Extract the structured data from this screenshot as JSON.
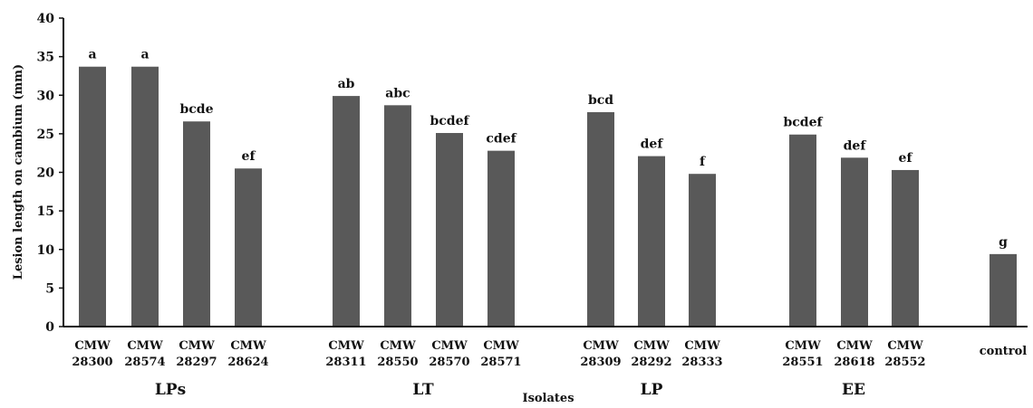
{
  "chart_data": {
    "type": "bar",
    "title": "",
    "xlabel": "Isolates",
    "ylabel": "Lesion length on cambium (mm)",
    "ylim": [
      0,
      40
    ],
    "yticks": [
      "0",
      "5",
      "10",
      "15",
      "20",
      "25",
      "30",
      "35",
      "40"
    ],
    "grid": false,
    "legend": "none",
    "bar_color": "#595959",
    "categories": [
      {
        "line1": "CMW",
        "line2": "28300",
        "group": "LPs",
        "value": 33.7,
        "sig": "a"
      },
      {
        "line1": "CMW",
        "line2": "28574",
        "group": "LPs",
        "value": 33.7,
        "sig": "a"
      },
      {
        "line1": "CMW",
        "line2": "28297",
        "group": "LPs",
        "value": 26.6,
        "sig": "bcde"
      },
      {
        "line1": "CMW",
        "line2": "28624",
        "group": "LPs",
        "value": 20.5,
        "sig": "ef"
      },
      {
        "line1": "CMW",
        "line2": "28311",
        "group": "LT",
        "value": 29.9,
        "sig": "ab"
      },
      {
        "line1": "CMW",
        "line2": "28550",
        "group": "LT",
        "value": 28.7,
        "sig": "abc"
      },
      {
        "line1": "CMW",
        "line2": "28570",
        "group": "LT",
        "value": 25.1,
        "sig": "bcdef"
      },
      {
        "line1": "CMW",
        "line2": "28571",
        "group": "LT",
        "value": 22.8,
        "sig": "cdef"
      },
      {
        "line1": "CMW",
        "line2": "28309",
        "group": "LP",
        "value": 27.8,
        "sig": "bcd"
      },
      {
        "line1": "CMW",
        "line2": "28292",
        "group": "LP",
        "value": 22.1,
        "sig": "def"
      },
      {
        "line1": "CMW",
        "line2": "28333",
        "group": "LP",
        "value": 19.8,
        "sig": "f"
      },
      {
        "line1": "CMW",
        "line2": "28551",
        "group": "EE",
        "value": 24.9,
        "sig": "bcdef"
      },
      {
        "line1": "CMW",
        "line2": "28618",
        "group": "EE",
        "value": 21.9,
        "sig": "def"
      },
      {
        "line1": "CMW",
        "line2": "28552",
        "group": "EE",
        "value": 20.3,
        "sig": "ef"
      },
      {
        "line1": "control",
        "line2": "",
        "group": "",
        "value": 9.4,
        "sig": "g"
      }
    ],
    "groups": [
      "LPs",
      "LT",
      "LP",
      "EE"
    ]
  }
}
